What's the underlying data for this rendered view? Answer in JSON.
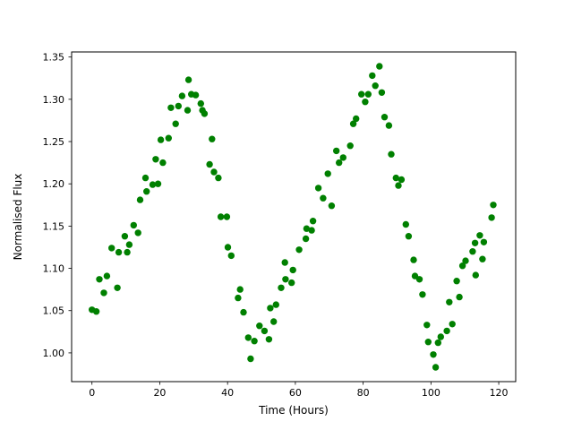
{
  "figure": {
    "background": "#ffffff"
  },
  "chart_data": {
    "type": "scatter",
    "title": "",
    "xlabel": "Time (Hours)",
    "ylabel": "Normalised Flux",
    "xlim": [
      -6,
      125
    ],
    "ylim": [
      0.966,
      1.356
    ],
    "xticks": [
      0,
      20,
      40,
      60,
      80,
      100,
      120
    ],
    "xtick_labels": [
      "0",
      "20",
      "40",
      "60",
      "80",
      "100",
      "120"
    ],
    "yticks": [
      1.0,
      1.05,
      1.1,
      1.15,
      1.2,
      1.25,
      1.3,
      1.35
    ],
    "ytick_labels": [
      "1.00",
      "1.05",
      "1.10",
      "1.15",
      "1.20",
      "1.25",
      "1.30",
      "1.35"
    ],
    "grid": false,
    "legend": null,
    "marker": "circle",
    "marker_color": "#008000",
    "marker_radius_px": 3.7,
    "axis_color": "#000000",
    "series_name": "normalised-flux-vs-time",
    "points": [
      [
        0.0,
        1.051
      ],
      [
        1.3,
        1.049
      ],
      [
        2.2,
        1.087
      ],
      [
        3.5,
        1.071
      ],
      [
        4.4,
        1.091
      ],
      [
        5.8,
        1.124
      ],
      [
        7.5,
        1.077
      ],
      [
        7.9,
        1.119
      ],
      [
        9.7,
        1.138
      ],
      [
        10.4,
        1.119
      ],
      [
        11.0,
        1.128
      ],
      [
        12.3,
        1.151
      ],
      [
        13.6,
        1.142
      ],
      [
        14.2,
        1.181
      ],
      [
        15.8,
        1.207
      ],
      [
        16.1,
        1.191
      ],
      [
        17.9,
        1.199
      ],
      [
        18.8,
        1.229
      ],
      [
        19.5,
        1.2
      ],
      [
        20.3,
        1.252
      ],
      [
        20.9,
        1.225
      ],
      [
        22.6,
        1.254
      ],
      [
        23.3,
        1.29
      ],
      [
        24.7,
        1.271
      ],
      [
        25.5,
        1.292
      ],
      [
        26.6,
        1.304
      ],
      [
        28.2,
        1.287
      ],
      [
        28.5,
        1.323
      ],
      [
        29.3,
        1.306
      ],
      [
        30.6,
        1.305
      ],
      [
        32.1,
        1.295
      ],
      [
        32.6,
        1.287
      ],
      [
        33.2,
        1.283
      ],
      [
        34.7,
        1.223
      ],
      [
        35.4,
        1.253
      ],
      [
        36.0,
        1.214
      ],
      [
        37.3,
        1.207
      ],
      [
        38.0,
        1.161
      ],
      [
        39.8,
        1.161
      ],
      [
        40.1,
        1.125
      ],
      [
        41.1,
        1.115
      ],
      [
        43.1,
        1.065
      ],
      [
        43.7,
        1.075
      ],
      [
        44.7,
        1.048
      ],
      [
        46.1,
        1.018
      ],
      [
        46.8,
        0.993
      ],
      [
        47.9,
        1.014
      ],
      [
        49.4,
        1.032
      ],
      [
        50.9,
        1.026
      ],
      [
        52.2,
        1.016
      ],
      [
        52.6,
        1.053
      ],
      [
        53.6,
        1.037
      ],
      [
        54.3,
        1.057
      ],
      [
        55.8,
        1.077
      ],
      [
        56.9,
        1.107
      ],
      [
        57.1,
        1.087
      ],
      [
        58.9,
        1.083
      ],
      [
        59.3,
        1.098
      ],
      [
        61.1,
        1.122
      ],
      [
        63.1,
        1.135
      ],
      [
        63.3,
        1.147
      ],
      [
        64.8,
        1.145
      ],
      [
        65.2,
        1.156
      ],
      [
        66.8,
        1.195
      ],
      [
        68.2,
        1.183
      ],
      [
        69.6,
        1.212
      ],
      [
        70.7,
        1.174
      ],
      [
        72.1,
        1.239
      ],
      [
        72.9,
        1.225
      ],
      [
        74.1,
        1.231
      ],
      [
        76.2,
        1.245
      ],
      [
        77.1,
        1.271
      ],
      [
        77.9,
        1.277
      ],
      [
        79.5,
        1.306
      ],
      [
        80.6,
        1.297
      ],
      [
        81.5,
        1.306
      ],
      [
        82.7,
        1.328
      ],
      [
        83.6,
        1.316
      ],
      [
        84.8,
        1.339
      ],
      [
        85.5,
        1.308
      ],
      [
        86.3,
        1.279
      ],
      [
        87.6,
        1.269
      ],
      [
        88.3,
        1.235
      ],
      [
        89.7,
        1.207
      ],
      [
        90.4,
        1.198
      ],
      [
        91.3,
        1.205
      ],
      [
        92.6,
        1.152
      ],
      [
        93.4,
        1.138
      ],
      [
        94.9,
        1.11
      ],
      [
        95.3,
        1.091
      ],
      [
        96.6,
        1.087
      ],
      [
        97.5,
        1.069
      ],
      [
        98.8,
        1.033
      ],
      [
        99.2,
        1.013
      ],
      [
        100.7,
        0.998
      ],
      [
        101.4,
        0.983
      ],
      [
        102.1,
        1.012
      ],
      [
        102.9,
        1.019
      ],
      [
        104.7,
        1.026
      ],
      [
        105.4,
        1.06
      ],
      [
        106.3,
        1.034
      ],
      [
        107.6,
        1.085
      ],
      [
        108.4,
        1.066
      ],
      [
        109.3,
        1.103
      ],
      [
        110.2,
        1.109
      ],
      [
        112.3,
        1.12
      ],
      [
        113.0,
        1.13
      ],
      [
        113.2,
        1.092
      ],
      [
        114.4,
        1.139
      ],
      [
        115.2,
        1.111
      ],
      [
        115.6,
        1.131
      ],
      [
        117.9,
        1.16
      ],
      [
        118.4,
        1.175
      ]
    ]
  }
}
